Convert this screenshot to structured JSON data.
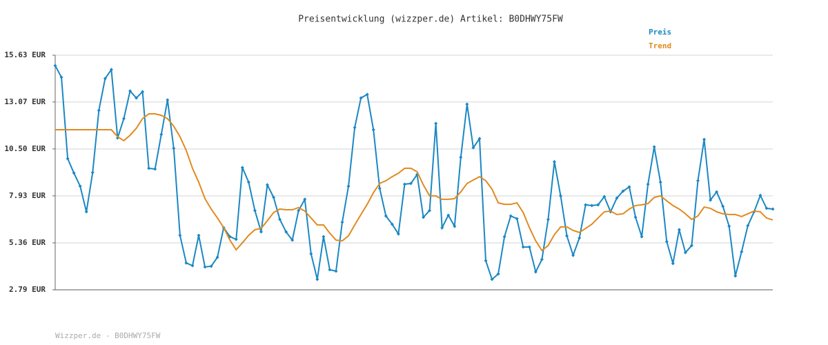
{
  "chart_data": {
    "type": "line",
    "title": "Preisentwicklung (wizzper.de) Artikel: B0DHWY75FW",
    "footer": "Wizzper.de - B0DHWY75FW",
    "ylim": [
      2.79,
      15.63
    ],
    "yticks": [
      {
        "value": 2.79,
        "label": "2.79 EUR"
      },
      {
        "value": 5.36,
        "label": "5.36 EUR"
      },
      {
        "value": 7.93,
        "label": "7.93 EUR"
      },
      {
        "value": 10.5,
        "label": "10.50 EUR"
      },
      {
        "value": 13.07,
        "label": "13.07 EUR"
      },
      {
        "value": 15.63,
        "label": "15.63 EUR"
      }
    ],
    "grid": true,
    "legend": "top-right",
    "series": [
      {
        "name": "Preis",
        "color": "#1a87c3",
        "markers": true,
        "values": [
          15.06,
          14.42,
          9.97,
          9.18,
          8.46,
          7.06,
          9.21,
          12.61,
          14.35,
          14.84,
          11.1,
          12.16,
          13.67,
          13.29,
          13.63,
          9.44,
          9.4,
          11.29,
          13.18,
          10.53,
          5.77,
          4.26,
          4.11,
          5.77,
          4.04,
          4.08,
          4.57,
          6.19,
          5.7,
          5.55,
          9.48,
          8.68,
          7.13,
          5.96,
          8.53,
          7.85,
          6.64,
          5.96,
          5.51,
          7.13,
          7.74,
          4.76,
          3.36,
          5.7,
          3.89,
          3.81,
          6.49,
          8.46,
          11.67,
          13.29,
          13.48,
          11.55,
          8.34,
          6.83,
          6.38,
          5.85,
          8.57,
          8.61,
          9.1,
          6.76,
          7.13,
          11.89,
          6.19,
          6.87,
          6.27,
          10.04,
          12.95,
          10.57,
          11.06,
          4.38,
          3.36,
          3.66,
          5.7,
          6.83,
          6.68,
          5.13,
          5.13,
          3.77,
          4.45,
          6.64,
          9.8,
          7.93,
          5.74,
          4.68,
          5.62,
          7.44,
          7.4,
          7.44,
          7.89,
          7.06,
          7.81,
          8.19,
          8.42,
          6.76,
          5.7,
          8.57,
          10.61,
          8.68,
          5.43,
          4.23,
          6.08,
          4.83,
          5.21,
          8.76,
          11.02,
          7.7,
          8.15,
          7.36,
          6.27,
          3.55,
          4.87,
          6.3,
          7.06,
          7.96,
          7.25,
          7.21
        ]
      },
      {
        "name": "Trend",
        "color": "#e08a1e",
        "markers": false,
        "values": [
          11.55,
          11.55,
          11.55,
          11.55,
          11.55,
          11.55,
          11.55,
          11.55,
          11.55,
          11.55,
          11.17,
          10.95,
          11.25,
          11.63,
          12.16,
          12.42,
          12.42,
          12.34,
          12.16,
          11.74,
          11.17,
          10.42,
          9.44,
          8.68,
          7.78,
          7.21,
          6.72,
          6.19,
          5.51,
          4.98,
          5.36,
          5.77,
          6.08,
          6.15,
          6.57,
          7.02,
          7.21,
          7.17,
          7.17,
          7.29,
          7.1,
          6.72,
          6.34,
          6.34,
          5.89,
          5.51,
          5.47,
          5.74,
          6.34,
          6.91,
          7.47,
          8.11,
          8.61,
          8.76,
          8.98,
          9.17,
          9.44,
          9.44,
          9.25,
          8.53,
          7.93,
          7.93,
          7.74,
          7.74,
          7.78,
          8.15,
          8.61,
          8.8,
          8.98,
          8.76,
          8.3,
          7.55,
          7.47,
          7.47,
          7.55,
          7.02,
          6.19,
          5.47,
          4.94,
          5.21,
          5.81,
          6.23,
          6.23,
          6.04,
          5.93,
          6.15,
          6.38,
          6.72,
          7.06,
          7.1,
          6.91,
          6.95,
          7.21,
          7.4,
          7.44,
          7.51,
          7.85,
          7.93,
          7.66,
          7.4,
          7.21,
          6.95,
          6.64,
          6.83,
          7.32,
          7.25,
          7.06,
          6.95,
          6.91,
          6.91,
          6.8,
          6.95,
          7.1,
          7.06,
          6.72,
          6.61
        ]
      }
    ]
  }
}
